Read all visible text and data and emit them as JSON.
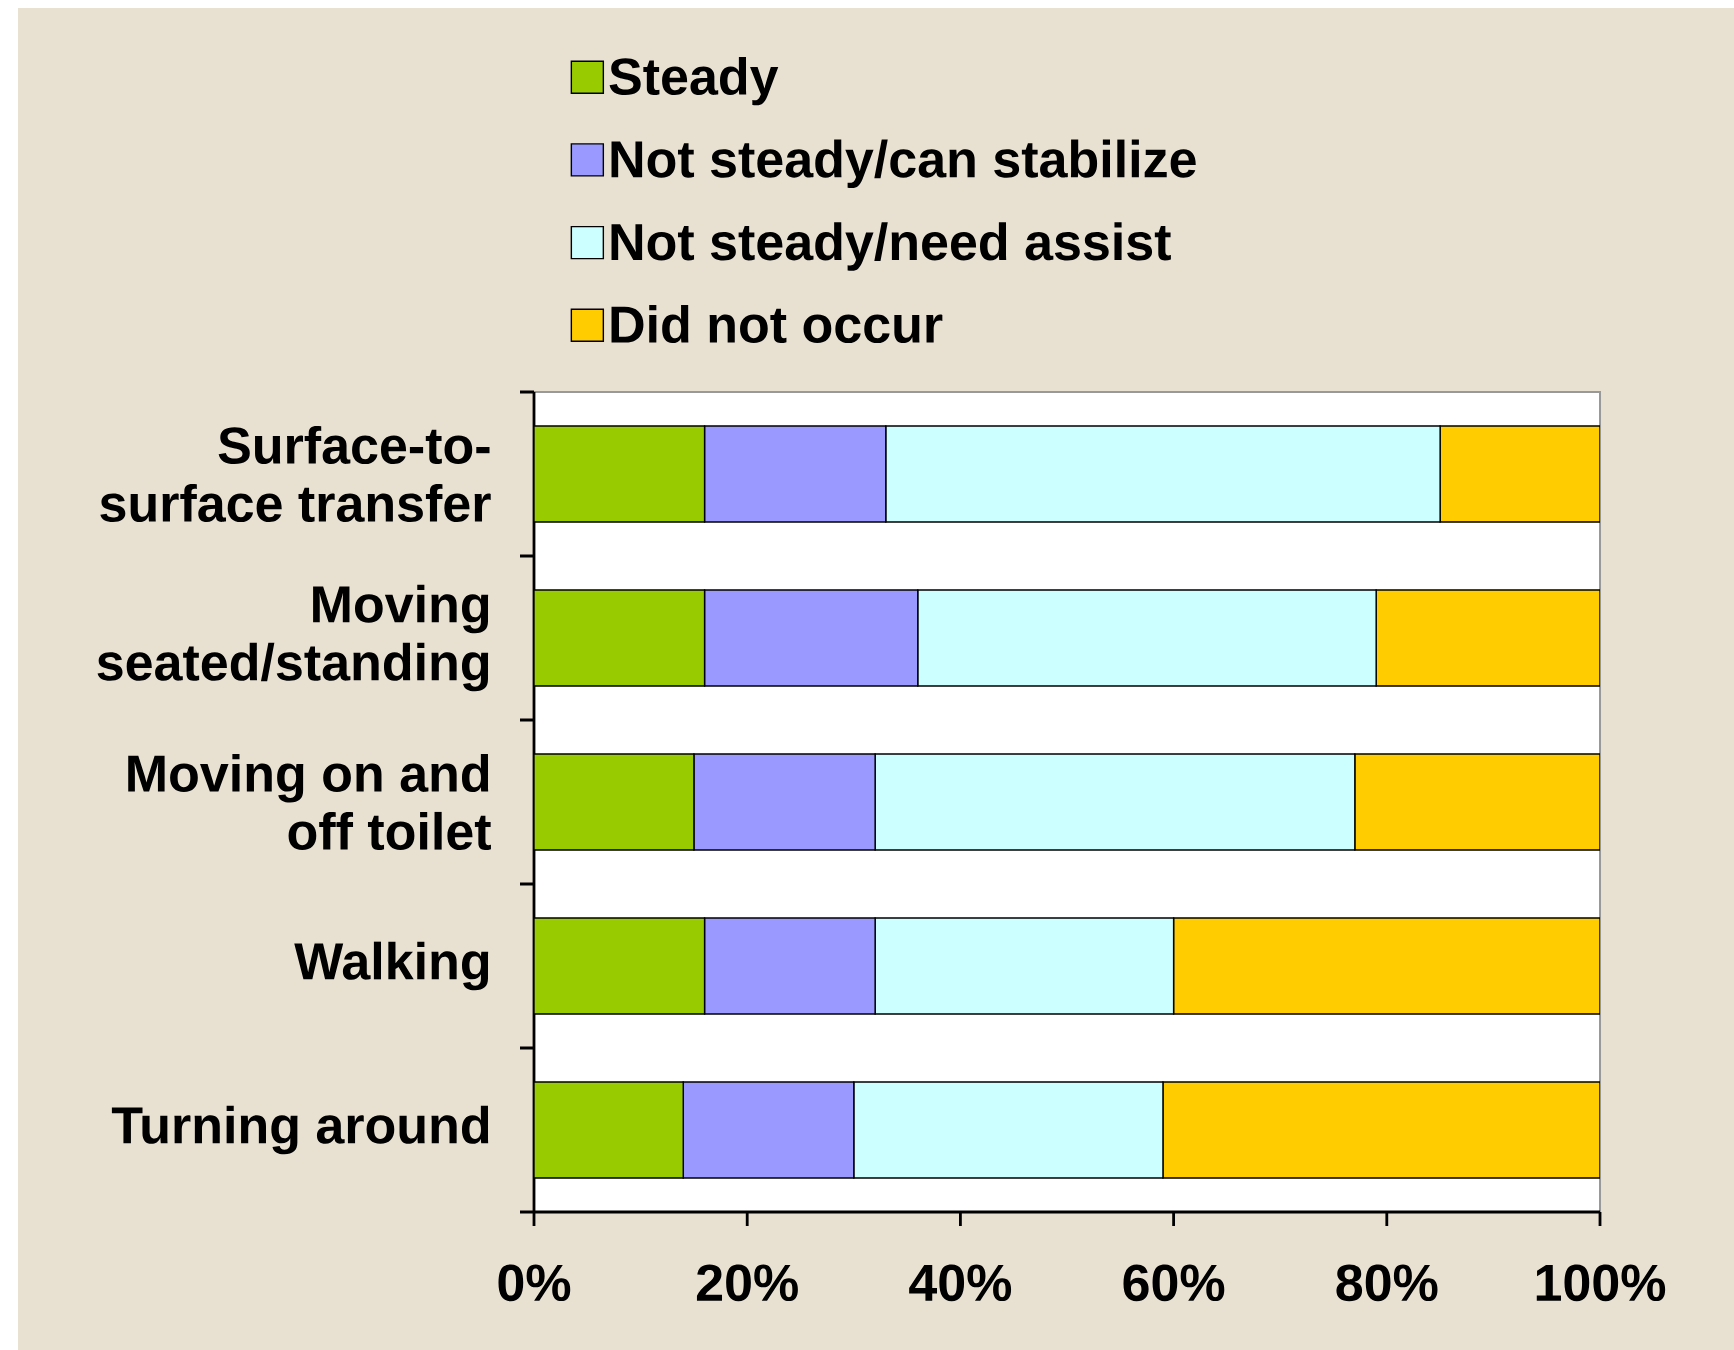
{
  "chart_data": {
    "type": "bar",
    "orientation": "horizontal",
    "stacked": true,
    "categories": [
      "Surface-to-surface transfer",
      "Moving seated/standing",
      "Moving on and off toilet",
      "Walking",
      "Turning around"
    ],
    "series": [
      {
        "name": "Steady",
        "color": "#99cc00",
        "values": [
          16,
          16,
          15,
          16,
          14
        ]
      },
      {
        "name": "Not steady/can stabilize",
        "color": "#9999ff",
        "values": [
          17,
          20,
          17,
          16,
          16
        ]
      },
      {
        "name": "Not steady/need assist",
        "color": "#ccffff",
        "values": [
          52,
          43,
          45,
          28,
          29
        ]
      },
      {
        "name": "Did not occur",
        "color": "#ffcc00",
        "values": [
          15,
          21,
          23,
          40,
          41
        ]
      }
    ],
    "xlim": [
      0,
      100
    ],
    "xticks": [
      {
        "value": 0,
        "label": "0%"
      },
      {
        "value": 20,
        "label": "20%"
      },
      {
        "value": 40,
        "label": "40%"
      },
      {
        "value": 60,
        "label": "60%"
      },
      {
        "value": 80,
        "label": "80%"
      },
      {
        "value": 100,
        "label": "100%"
      }
    ],
    "legend": "top"
  }
}
